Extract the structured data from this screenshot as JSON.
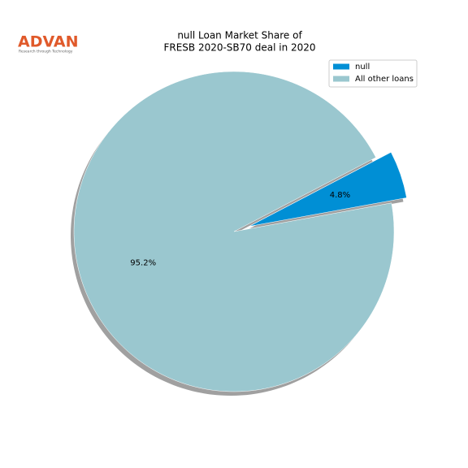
{
  "logo": {
    "name": "ADVAN",
    "tagline": "Research through Technology"
  },
  "chart_data": {
    "type": "pie",
    "title": [
      "null Loan Market Share of",
      "FRESB 2020-SB70 deal in 2020"
    ],
    "categories": [
      "null",
      "All other loans"
    ],
    "values": [
      4.8,
      95.2
    ],
    "value_labels": [
      "4.8%",
      "95.2%"
    ],
    "colors": [
      "#008fd5",
      "#9ac7cf"
    ],
    "legend": "upper right",
    "shadow": true
  }
}
